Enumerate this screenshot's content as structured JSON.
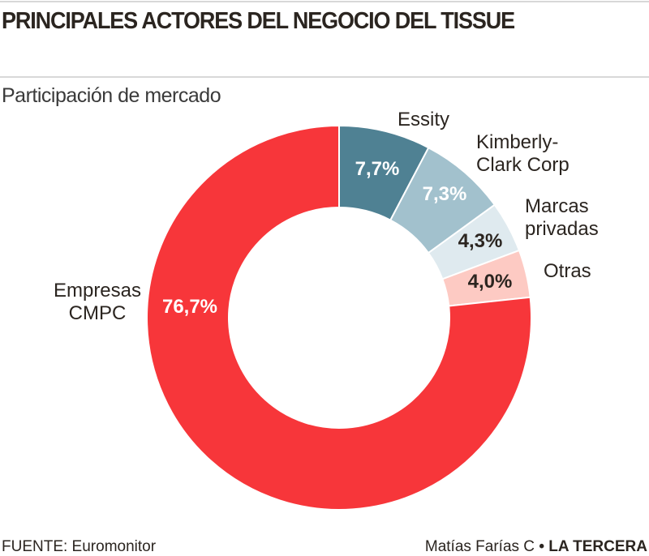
{
  "title": "PRINCIPALES ACTORES DEL NEGOCIO DEL TISSUE",
  "subtitle": "Participación de mercado",
  "footer": {
    "source": "FUENTE: Euromonitor",
    "author": "Matías Farías C",
    "separator": "•",
    "publisher": "LA TERCERA"
  },
  "chart_data": {
    "type": "pie",
    "variant": "donut",
    "start": "top, clockwise",
    "slices": [
      {
        "label": [
          "Essity"
        ],
        "value": 7.7,
        "value_label": "7,7%",
        "color": "#4f8193",
        "text_color": "#ffffff"
      },
      {
        "label": [
          "Kimberly-",
          "Clark Corp"
        ],
        "value": 7.3,
        "value_label": "7,3%",
        "color": "#a2c1cd",
        "text_color": "#ffffff"
      },
      {
        "label": [
          "Marcas",
          "privadas"
        ],
        "value": 4.3,
        "value_label": "4,3%",
        "color": "#dfeaef",
        "text_color": "#2b2520"
      },
      {
        "label": [
          "Otras"
        ],
        "value": 4.0,
        "value_label": "4,0%",
        "color": "#fdcac3",
        "text_color": "#2b2520"
      },
      {
        "label": [
          "Empresas",
          "CMPC"
        ],
        "value": 76.7,
        "value_label": "76,7%",
        "color": "#f7363a",
        "text_color": "#ffffff"
      }
    ]
  }
}
